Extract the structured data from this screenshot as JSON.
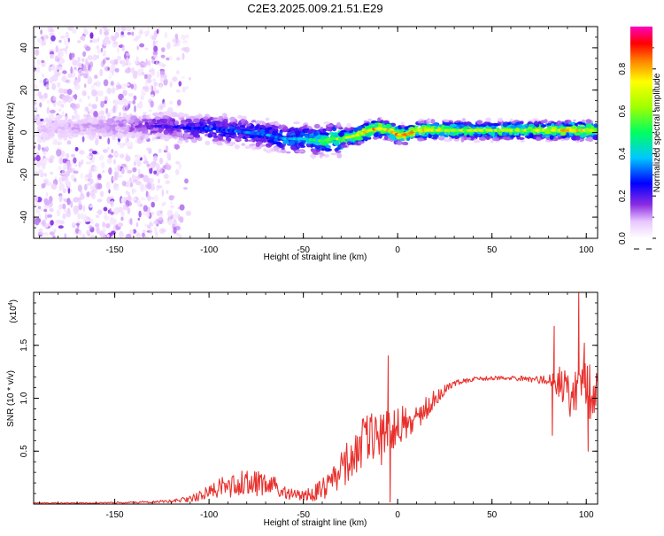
{
  "title": "C2E3.2025.009.21.51.E29",
  "chart_data": [
    {
      "type": "heatmap",
      "id": "spectrogram",
      "xlabel": "Height of straight line (km)",
      "ylabel": "Frequency (Hz)",
      "xlim": [
        -193,
        106
      ],
      "ylim": [
        -50,
        50
      ],
      "xticks": [
        -150,
        -100,
        -50,
        0,
        50,
        100
      ],
      "xtick_labels": [
        "-150",
        "-100",
        "-50",
        "0",
        "50",
        "100"
      ],
      "yticks": [
        -40,
        -20,
        0,
        20,
        40
      ],
      "ytick_labels": [
        "-40",
        "-20",
        "0",
        "20",
        "40"
      ],
      "colorbar": {
        "label": "Normalized spectral amplitude",
        "range": [
          0,
          1
        ],
        "ticks": [
          0.0,
          0.2,
          0.4,
          0.6,
          0.8
        ],
        "tick_labels": [
          "0.0",
          "0.2",
          "0.4",
          "0.6",
          "0.8"
        ]
      },
      "ridge": {
        "x": [
          -190,
          -150,
          -125,
          -110,
          -100,
          -90,
          -80,
          -70,
          -60,
          -50,
          -40,
          -35,
          -30,
          -20,
          -15,
          -10,
          -5,
          0,
          5,
          10,
          20,
          30,
          40,
          50,
          60,
          70,
          80,
          90,
          100,
          106
        ],
        "freq": [
          2,
          3,
          3,
          2,
          2,
          1,
          0,
          -1,
          -3,
          -3,
          -4,
          -3,
          -3,
          -1,
          1,
          2,
          1,
          -1,
          -1,
          1,
          1,
          1,
          1,
          1,
          1,
          1,
          1,
          1,
          1,
          1
        ],
        "amplitude": [
          0.08,
          0.12,
          0.2,
          0.25,
          0.28,
          0.3,
          0.3,
          0.32,
          0.35,
          0.4,
          0.48,
          0.55,
          0.6,
          0.7,
          0.75,
          0.72,
          0.7,
          0.78,
          0.8,
          0.72,
          0.65,
          0.62,
          0.6,
          0.62,
          0.6,
          0.62,
          0.65,
          0.7,
          0.68,
          0.65
        ]
      }
    },
    {
      "type": "line",
      "id": "snr",
      "xlabel": "Height of straight line (km)",
      "ylabel": "SNR (10 * v/v)",
      "ylabel_multiplier": "(x10",
      "ylabel_multiplier_exp": "4",
      "ylabel_multiplier_close": ")",
      "xlim": [
        -193,
        106
      ],
      "ylim": [
        0,
        2.0
      ],
      "xticks": [
        -150,
        -100,
        -50,
        0,
        50,
        100
      ],
      "xtick_labels": [
        "-150",
        "-100",
        "-50",
        "0",
        "50",
        "100"
      ],
      "yticks": [
        0.5,
        1.0,
        1.5
      ],
      "ytick_labels": [
        "0.5",
        "1.0",
        "1.5"
      ],
      "series": [
        {
          "name": "SNR",
          "color": "#e8312d",
          "x": [
            -193,
            -160,
            -130,
            -120,
            -110,
            -105,
            -100,
            -95,
            -90,
            -85,
            -80,
            -75,
            -70,
            -65,
            -60,
            -55,
            -50,
            -45,
            -40,
            -35,
            -30,
            -25,
            -20,
            -15,
            -10,
            -5,
            0,
            5,
            10,
            15,
            20,
            25,
            30,
            40,
            50,
            60,
            70,
            80,
            85,
            90,
            95,
            100,
            106
          ],
          "mean": [
            0.01,
            0.01,
            0.02,
            0.03,
            0.05,
            0.08,
            0.12,
            0.15,
            0.16,
            0.18,
            0.2,
            0.2,
            0.19,
            0.16,
            0.12,
            0.09,
            0.08,
            0.1,
            0.14,
            0.2,
            0.32,
            0.45,
            0.55,
            0.6,
            0.62,
            0.65,
            0.7,
            0.75,
            0.82,
            0.9,
            1.0,
            1.08,
            1.14,
            1.18,
            1.19,
            1.19,
            1.18,
            1.17,
            1.15,
            1.1,
            1.05,
            1.05,
            1.1
          ],
          "noise": [
            0.005,
            0.005,
            0.01,
            0.015,
            0.03,
            0.05,
            0.07,
            0.1,
            0.1,
            0.12,
            0.13,
            0.13,
            0.12,
            0.1,
            0.07,
            0.05,
            0.05,
            0.07,
            0.1,
            0.14,
            0.18,
            0.22,
            0.25,
            0.25,
            0.25,
            0.28,
            0.22,
            0.18,
            0.15,
            0.12,
            0.08,
            0.05,
            0.03,
            0.02,
            0.02,
            0.02,
            0.03,
            0.05,
            0.15,
            0.25,
            0.3,
            0.3,
            0.2
          ],
          "spikes": [
            {
              "x": -5,
              "y": 1.4
            },
            {
              "x": -4,
              "y": 0.02
            },
            {
              "x": 83,
              "y": 1.68
            },
            {
              "x": 82,
              "y": 0.65
            },
            {
              "x": 96,
              "y": 2.0
            },
            {
              "x": 101,
              "y": 0.5
            },
            {
              "x": 99,
              "y": 1.52
            }
          ]
        }
      ]
    }
  ]
}
